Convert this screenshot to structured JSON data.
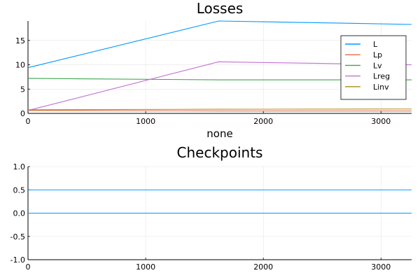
{
  "chart_data": [
    {
      "type": "line",
      "title": "Losses",
      "xlabel": "none",
      "ylabel": "",
      "xlim": [
        0,
        3260
      ],
      "ylim": [
        0,
        19
      ],
      "xticks": [
        0,
        1000,
        2000,
        3000
      ],
      "yticks": [
        0,
        5,
        10,
        15
      ],
      "xtick_labels": [
        "0",
        "1000",
        "2000",
        "3000"
      ],
      "ytick_labels": [
        "0",
        "5",
        "10",
        "15"
      ],
      "grid": true,
      "legend_position": "top-right",
      "series": [
        {
          "name": "L",
          "color": "#009af9",
          "x": [
            0,
            1620,
            3260
          ],
          "y": [
            9.4,
            19.0,
            18.3
          ]
        },
        {
          "name": "Lp",
          "color": "#e26f46",
          "x": [
            0,
            1620,
            3260
          ],
          "y": [
            0.6,
            0.5,
            0.5
          ]
        },
        {
          "name": "Lv",
          "color": "#3da44d",
          "x": [
            0,
            1620,
            3260
          ],
          "y": [
            7.2,
            6.9,
            6.9
          ]
        },
        {
          "name": "Lreg",
          "color": "#c271d2",
          "x": [
            0,
            1620,
            3260
          ],
          "y": [
            0.6,
            10.6,
            10.0
          ]
        },
        {
          "name": "Linv",
          "color": "#ac8e18",
          "x": [
            0,
            1620,
            3260
          ],
          "y": [
            0.75,
            0.85,
            0.9
          ]
        }
      ]
    },
    {
      "type": "line",
      "title": "Checkpoints",
      "xlabel": "",
      "ylabel": "",
      "xlim": [
        0,
        3260
      ],
      "ylim": [
        -1,
        1
      ],
      "xticks": [
        0,
        1000,
        2000,
        3000
      ],
      "yticks": [
        -1,
        -0.5,
        0,
        0.5,
        1
      ],
      "xtick_labels": [
        "0",
        "1000",
        "2000",
        "3000"
      ],
      "ytick_labels": [
        "-1.0",
        "-0.5",
        "0.0",
        "0.5",
        "1.0"
      ],
      "grid": true,
      "series": [
        {
          "color": "#009af9",
          "x": [
            0,
            3260
          ],
          "y": [
            0.5,
            0.5
          ]
        },
        {
          "color": "#009af9",
          "x": [
            0,
            3260
          ],
          "y": [
            0.0,
            0.0
          ]
        }
      ]
    }
  ]
}
